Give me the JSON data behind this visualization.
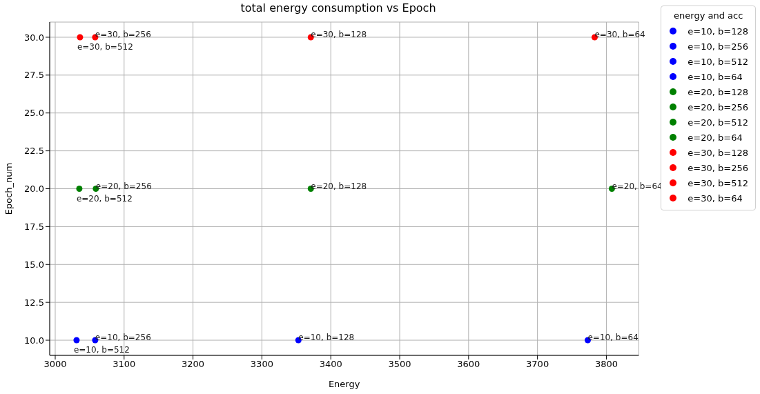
{
  "chart_data": {
    "type": "scatter",
    "title": "total energy consumption vs Epoch",
    "xlabel": "Energy",
    "ylabel": "Epoch_num",
    "legend_title": "energy and acc",
    "legend": "top right",
    "grid": true,
    "marker": "circle",
    "xlim": [
      2992,
      3847
    ],
    "ylim": [
      9,
      31
    ],
    "xticks": [
      3000,
      3100,
      3200,
      3300,
      3400,
      3500,
      3600,
      3700,
      3800
    ],
    "yticks": [
      {
        "value": 10,
        "label": "10.0"
      },
      {
        "value": 12.5,
        "label": "12.5"
      },
      {
        "value": 15,
        "label": "15.0"
      },
      {
        "value": 17.5,
        "label": "17.5"
      },
      {
        "value": 20,
        "label": "20.0"
      },
      {
        "value": 22.5,
        "label": "22.5"
      },
      {
        "value": 25,
        "label": "25.0"
      },
      {
        "value": 27.5,
        "label": "27.5"
      },
      {
        "value": 30,
        "label": "30.0"
      }
    ],
    "series": [
      {
        "name": "e=10, b=128",
        "color": "#0000ff",
        "x": [
          3353
        ],
        "values": [
          10
        ]
      },
      {
        "name": "e=10, b=256",
        "color": "#0000ff",
        "x": [
          3058
        ],
        "values": [
          10
        ]
      },
      {
        "name": "e=10, b=512",
        "color": "#0000ff",
        "x": [
          3031
        ],
        "values": [
          10
        ]
      },
      {
        "name": "e=10, b=64",
        "color": "#0000ff",
        "x": [
          3773
        ],
        "values": [
          10
        ]
      },
      {
        "name": "e=20, b=128",
        "color": "#008000",
        "x": [
          3371
        ],
        "values": [
          20
        ]
      },
      {
        "name": "e=20, b=256",
        "color": "#008000",
        "x": [
          3059
        ],
        "values": [
          20
        ]
      },
      {
        "name": "e=20, b=512",
        "color": "#008000",
        "x": [
          3035
        ],
        "values": [
          20
        ]
      },
      {
        "name": "e=20, b=64",
        "color": "#008000",
        "x": [
          3808
        ],
        "values": [
          20
        ]
      },
      {
        "name": "e=30, b=128",
        "color": "#ff0000",
        "x": [
          3371
        ],
        "values": [
          30
        ]
      },
      {
        "name": "e=30, b=256",
        "color": "#ff0000",
        "x": [
          3058
        ],
        "values": [
          30
        ]
      },
      {
        "name": "e=30, b=512",
        "color": "#ff0000",
        "x": [
          3036
        ],
        "values": [
          30
        ]
      },
      {
        "name": "e=30, b=64",
        "color": "#ff0000",
        "x": [
          3783
        ],
        "values": [
          30
        ]
      }
    ]
  }
}
